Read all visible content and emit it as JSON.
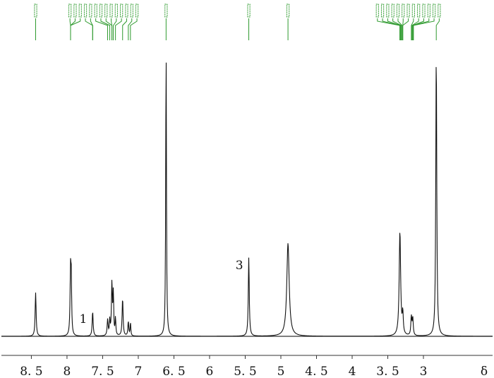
{
  "chart_data": {
    "type": "line",
    "title": "",
    "xlabel": "δ",
    "ylabel": "",
    "x_reversed": true,
    "xlim": [
      8.92,
      2.03
    ],
    "ylim": [
      0,
      1.0
    ],
    "grid": false,
    "legend": "none",
    "tick_values": [
      8.5,
      8,
      7.5,
      7,
      6.5,
      6,
      5.5,
      5,
      4.5,
      4,
      3.5,
      3
    ],
    "tick_labels": [
      "8. 5",
      "8",
      "7. 5",
      "7",
      "6. 5",
      "6",
      "5. 5",
      "5",
      "4. 5",
      "4",
      "3. 5",
      "3"
    ],
    "peaks": [
      {
        "shift": 8.44,
        "height": 0.15,
        "width": 0.008
      },
      {
        "shift": 7.95,
        "height": 0.225,
        "width": 0.008
      },
      {
        "shift": 7.94,
        "height": 0.16,
        "width": 0.006
      },
      {
        "shift": 7.64,
        "height": 0.085,
        "width": 0.008
      },
      {
        "shift": 7.43,
        "height": 0.055,
        "width": 0.008
      },
      {
        "shift": 7.4,
        "height": 0.05,
        "width": 0.006
      },
      {
        "shift": 7.37,
        "height": 0.18,
        "width": 0.008
      },
      {
        "shift": 7.35,
        "height": 0.14,
        "width": 0.006
      },
      {
        "shift": 7.32,
        "height": 0.06,
        "width": 0.006
      },
      {
        "shift": 7.22,
        "height": 0.13,
        "width": 0.008
      },
      {
        "shift": 7.14,
        "height": 0.05,
        "width": 0.007
      },
      {
        "shift": 7.11,
        "height": 0.045,
        "width": 0.006
      },
      {
        "shift": 6.61,
        "height": 1.0,
        "width": 0.006
      },
      {
        "shift": 5.45,
        "height": 0.27,
        "width": 0.008
      },
      {
        "shift": 4.9,
        "height": 0.32,
        "width": 0.02
      },
      {
        "shift": 3.33,
        "height": 0.36,
        "width": 0.012
      },
      {
        "shift": 3.29,
        "height": 0.07,
        "width": 0.008
      },
      {
        "shift": 3.17,
        "height": 0.065,
        "width": 0.008
      },
      {
        "shift": 3.15,
        "height": 0.06,
        "width": 0.008
      },
      {
        "shift": 2.82,
        "height": 0.98,
        "width": 0.008
      }
    ],
    "annotations": [
      {
        "text": "1",
        "shift": 7.64
      },
      {
        "text": "3",
        "shift": 5.45
      }
    ],
    "shift_labels": [
      {
        "group": "left",
        "anchors": [
          8.44
        ]
      },
      {
        "group": "aromatic",
        "anchors": [
          7.95,
          7.95,
          7.95,
          7.64,
          7.64,
          7.43,
          7.4,
          7.37,
          7.37,
          7.35,
          7.32,
          7.22,
          7.14,
          7.11
        ]
      },
      {
        "group": "single",
        "anchors": [
          6.61
        ]
      },
      {
        "group": "single",
        "anchors": [
          5.45
        ]
      },
      {
        "group": "single",
        "anchors": [
          4.9
        ]
      },
      {
        "group": "aliphatic",
        "anchors": [
          3.33,
          3.33,
          3.32,
          3.31,
          3.3,
          3.29,
          3.29,
          3.17,
          3.16,
          3.15,
          3.15,
          3.14,
          2.82
        ]
      }
    ]
  }
}
